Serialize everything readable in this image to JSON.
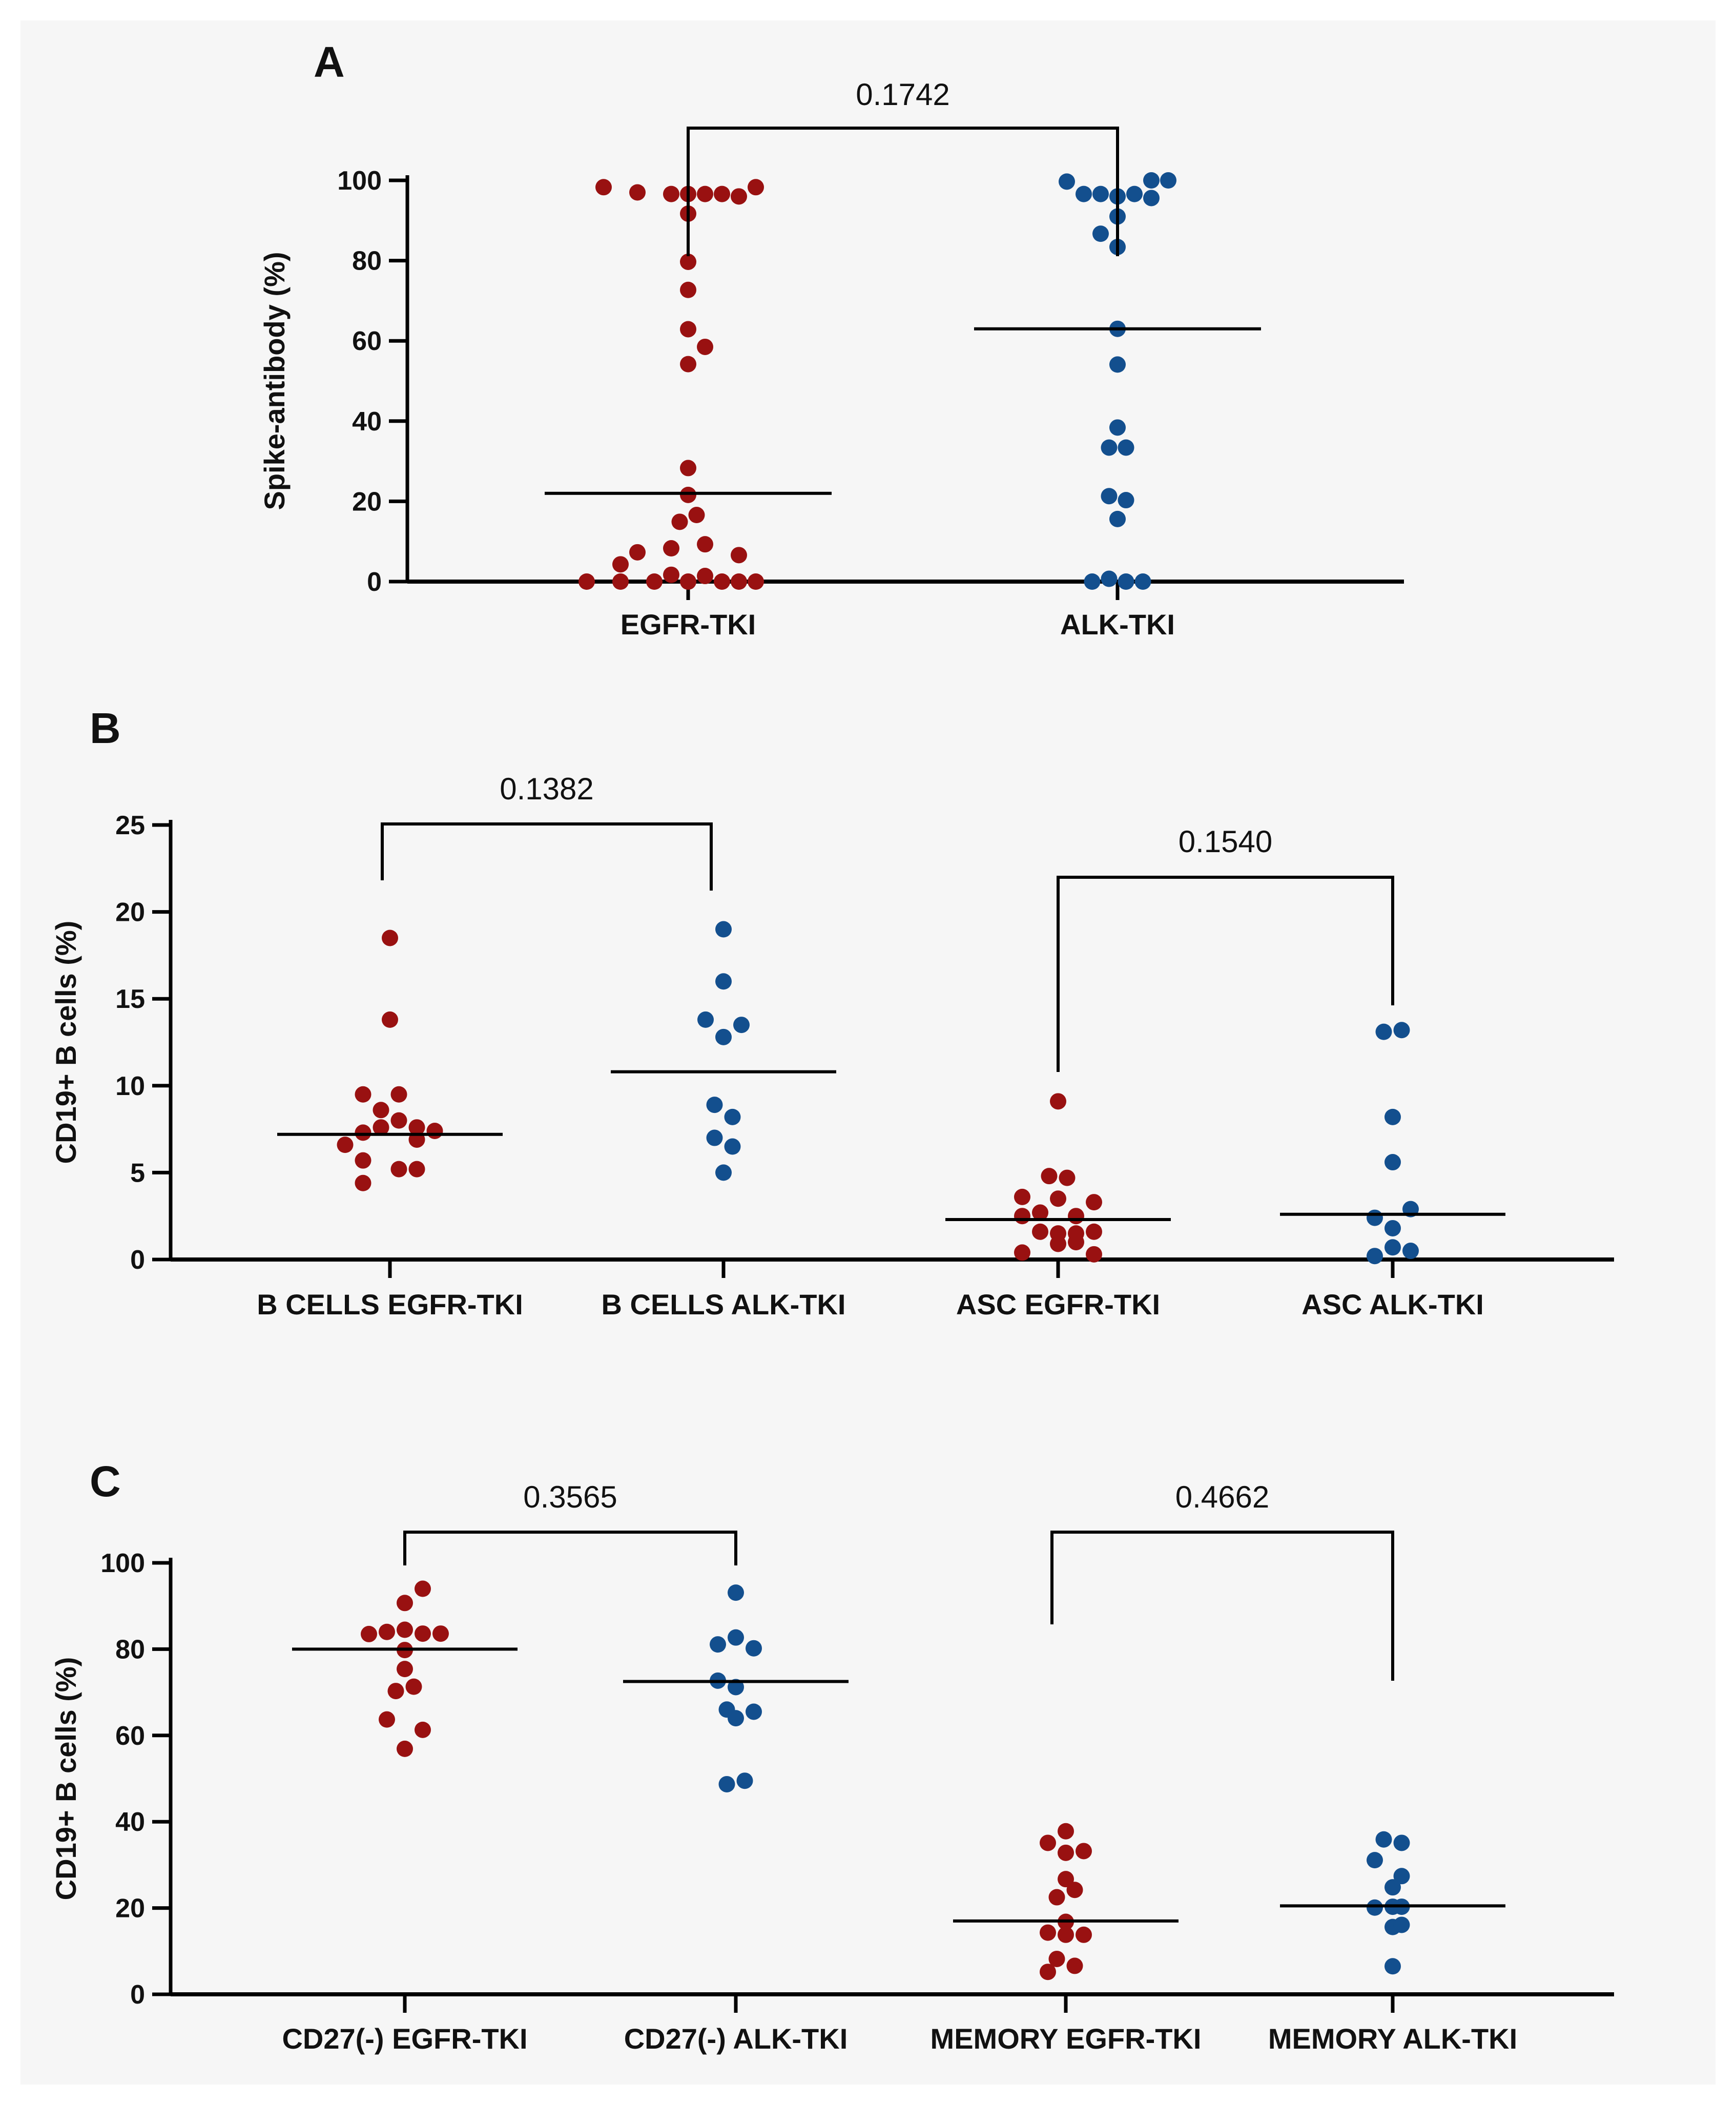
{
  "colors": {
    "egfr": "#991111",
    "alk": "#134f8e",
    "axis": "#000000",
    "background": "#f6f6f6"
  },
  "chart_data": [
    {
      "panel": "A",
      "type": "scatter",
      "ylabel": "Spike-antibody (%)",
      "ylim": [
        0,
        100
      ],
      "yticks": [
        0,
        20,
        40,
        60,
        80,
        100
      ],
      "categories": [
        "EGFR-TKI",
        "ALK-TKI"
      ],
      "series": [
        {
          "name": "EGFR-TKI",
          "color": "egfr",
          "median": 22,
          "points": [
            {
              "dx": -5,
              "y": 98.3
            },
            {
              "dx": -3,
              "y": 97.0
            },
            {
              "dx": -1,
              "y": 96.6
            },
            {
              "dx": 0,
              "y": 96.6
            },
            {
              "dx": 1,
              "y": 96.6
            },
            {
              "dx": 2,
              "y": 96.6
            },
            {
              "dx": 3,
              "y": 96.0
            },
            {
              "dx": 4,
              "y": 98.3
            },
            {
              "dx": 0,
              "y": 91.7
            },
            {
              "dx": 0,
              "y": 79.7
            },
            {
              "dx": 0,
              "y": 72.7
            },
            {
              "dx": 0,
              "y": 62.9
            },
            {
              "dx": 0,
              "y": 54.2
            },
            {
              "dx": 1,
              "y": 58.5
            },
            {
              "dx": 0,
              "y": 28.3
            },
            {
              "dx": 0,
              "y": 21.6
            },
            {
              "dx": 0.5,
              "y": 16.6
            },
            {
              "dx": -0.5,
              "y": 14.9
            },
            {
              "dx": -3,
              "y": 7.3
            },
            {
              "dx": -1,
              "y": 8.3
            },
            {
              "dx": 1,
              "y": 9.3
            },
            {
              "dx": -4,
              "y": 4.3
            },
            {
              "dx": 3,
              "y": 6.6
            },
            {
              "dx": -6,
              "y": 0
            },
            {
              "dx": -4,
              "y": 0
            },
            {
              "dx": -2,
              "y": 0
            },
            {
              "dx": -1,
              "y": 1.7
            },
            {
              "dx": 0,
              "y": 0
            },
            {
              "dx": 1,
              "y": 1.4
            },
            {
              "dx": 2,
              "y": 0
            },
            {
              "dx": 3,
              "y": 0
            },
            {
              "dx": 4,
              "y": 0
            }
          ]
        },
        {
          "name": "ALK-TKI",
          "color": "alk",
          "median": 63,
          "points": [
            {
              "dx": -3,
              "y": 99.7
            },
            {
              "dx": -2,
              "y": 96.6
            },
            {
              "dx": -1,
              "y": 96.6
            },
            {
              "dx": 0,
              "y": 96.0
            },
            {
              "dx": 1,
              "y": 96.6
            },
            {
              "dx": 2,
              "y": 100.0
            },
            {
              "dx": 2,
              "y": 95.6
            },
            {
              "dx": 3,
              "y": 100.0
            },
            {
              "dx": 0,
              "y": 91.0
            },
            {
              "dx": -1,
              "y": 86.7
            },
            {
              "dx": 0,
              "y": 83.4
            },
            {
              "dx": 0,
              "y": 63.0
            },
            {
              "dx": 0,
              "y": 54.1
            },
            {
              "dx": 0,
              "y": 38.4
            },
            {
              "dx": -0.5,
              "y": 33.4
            },
            {
              "dx": 0.5,
              "y": 33.4
            },
            {
              "dx": -0.5,
              "y": 21.3
            },
            {
              "dx": 0.5,
              "y": 20.3
            },
            {
              "dx": 0,
              "y": 15.6
            },
            {
              "dx": -1.5,
              "y": 0
            },
            {
              "dx": -0.5,
              "y": 0.7
            },
            {
              "dx": 0.5,
              "y": 0
            },
            {
              "dx": 1.5,
              "y": 0
            }
          ]
        }
      ],
      "comparisons": [
        {
          "between": [
            0,
            1
          ],
          "p_value": "0.1742"
        }
      ]
    },
    {
      "panel": "B",
      "type": "scatter",
      "ylabel": "CD19+ B cells (%)",
      "ylim": [
        0,
        25
      ],
      "yticks": [
        0,
        5,
        10,
        15,
        20,
        25
      ],
      "categories": [
        "B CELLS EGFR-TKI",
        "B CELLS ALK-TKI",
        "ASC EGFR-TKI",
        "ASC ALK-TKI"
      ],
      "series": [
        {
          "name": "B CELLS EGFR-TKI",
          "color": "egfr",
          "median": 7.2,
          "points": [
            {
              "dx": 0,
              "y": 18.5
            },
            {
              "dx": 0,
              "y": 13.8
            },
            {
              "dx": -1.5,
              "y": 9.5
            },
            {
              "dx": 0.5,
              "y": 9.5
            },
            {
              "dx": -0.5,
              "y": 8.6
            },
            {
              "dx": 0.5,
              "y": 8.0
            },
            {
              "dx": -2.5,
              "y": 6.6
            },
            {
              "dx": -1.5,
              "y": 7.3
            },
            {
              "dx": -0.5,
              "y": 7.6
            },
            {
              "dx": 1.5,
              "y": 7.6
            },
            {
              "dx": 2.5,
              "y": 7.4
            },
            {
              "dx": -1.5,
              "y": 5.7
            },
            {
              "dx": 1.5,
              "y": 6.9
            },
            {
              "dx": -1.5,
              "y": 4.4
            },
            {
              "dx": 0.5,
              "y": 5.2
            },
            {
              "dx": 1.5,
              "y": 5.2
            }
          ]
        },
        {
          "name": "B CELLS ALK-TKI",
          "color": "alk",
          "median": 10.8,
          "points": [
            {
              "dx": 0,
              "y": 19.0
            },
            {
              "dx": 0,
              "y": 16.0
            },
            {
              "dx": -1,
              "y": 13.8
            },
            {
              "dx": 0,
              "y": 12.8
            },
            {
              "dx": 1,
              "y": 13.5
            },
            {
              "dx": -0.5,
              "y": 8.9
            },
            {
              "dx": 0.5,
              "y": 8.2
            },
            {
              "dx": -0.5,
              "y": 7.0
            },
            {
              "dx": 0.5,
              "y": 6.5
            },
            {
              "dx": 0,
              "y": 5.0
            }
          ]
        },
        {
          "name": "ASC EGFR-TKI",
          "color": "egfr",
          "median": 2.3,
          "points": [
            {
              "dx": 0,
              "y": 9.1
            },
            {
              "dx": -0.5,
              "y": 4.8
            },
            {
              "dx": 0.5,
              "y": 4.7
            },
            {
              "dx": -2,
              "y": 3.6
            },
            {
              "dx": 0,
              "y": 3.5
            },
            {
              "dx": 2,
              "y": 3.3
            },
            {
              "dx": -2,
              "y": 2.5
            },
            {
              "dx": -1,
              "y": 2.7
            },
            {
              "dx": 1,
              "y": 2.5
            },
            {
              "dx": -1,
              "y": 1.6
            },
            {
              "dx": 0,
              "y": 1.5
            },
            {
              "dx": 1,
              "y": 1.5
            },
            {
              "dx": 2,
              "y": 1.6
            },
            {
              "dx": -2,
              "y": 0.4
            },
            {
              "dx": 0,
              "y": 0.9
            },
            {
              "dx": 1,
              "y": 1.0
            },
            {
              "dx": 2,
              "y": 0.3
            }
          ]
        },
        {
          "name": "ASC ALK-TKI",
          "color": "alk",
          "median": 2.6,
          "points": [
            {
              "dx": -0.5,
              "y": 13.1
            },
            {
              "dx": 0.5,
              "y": 13.2
            },
            {
              "dx": 0,
              "y": 8.2
            },
            {
              "dx": 0,
              "y": 5.6
            },
            {
              "dx": -1,
              "y": 2.4
            },
            {
              "dx": 1,
              "y": 2.9
            },
            {
              "dx": 0,
              "y": 1.8
            },
            {
              "dx": -1,
              "y": 0.2
            },
            {
              "dx": 0,
              "y": 0.7
            },
            {
              "dx": 1,
              "y": 0.5
            }
          ]
        }
      ],
      "comparisons": [
        {
          "between": [
            0,
            1
          ],
          "p_value": "0.1382"
        },
        {
          "between": [
            2,
            3
          ],
          "p_value": "0.1540"
        }
      ]
    },
    {
      "panel": "C",
      "type": "scatter",
      "ylabel": "CD19+ B cells (%)",
      "ylim": [
        0,
        100
      ],
      "yticks": [
        0,
        20,
        40,
        60,
        80,
        100
      ],
      "categories": [
        "CD27(-) EGFR-TKI",
        "CD27(-) ALK-TKI",
        "MEMORY EGFR-TKI",
        "MEMORY ALK-TKI"
      ],
      "series": [
        {
          "name": "CD27(-) EGFR-TKI",
          "color": "egfr",
          "median": 80,
          "points": [
            {
              "dx": 1,
              "y": 94.0
            },
            {
              "dx": 0,
              "y": 90.7
            },
            {
              "dx": -2,
              "y": 83.5
            },
            {
              "dx": -1,
              "y": 84.0
            },
            {
              "dx": 0,
              "y": 84.5
            },
            {
              "dx": 1,
              "y": 83.6
            },
            {
              "dx": 2,
              "y": 83.6
            },
            {
              "dx": 0,
              "y": 79.8
            },
            {
              "dx": 0,
              "y": 75.4
            },
            {
              "dx": -0.5,
              "y": 70.3
            },
            {
              "dx": 0.5,
              "y": 71.3
            },
            {
              "dx": -1,
              "y": 63.7
            },
            {
              "dx": 1,
              "y": 61.3
            },
            {
              "dx": 0,
              "y": 56.9
            }
          ]
        },
        {
          "name": "CD27(-) ALK-TKI",
          "color": "alk",
          "median": 72.5,
          "points": [
            {
              "dx": 0,
              "y": 93.1
            },
            {
              "dx": -1,
              "y": 81.1
            },
            {
              "dx": 0,
              "y": 82.7
            },
            {
              "dx": 1,
              "y": 80.2
            },
            {
              "dx": -1,
              "y": 72.7
            },
            {
              "dx": 0,
              "y": 71.2
            },
            {
              "dx": -0.5,
              "y": 66.0
            },
            {
              "dx": 1,
              "y": 65.5
            },
            {
              "dx": 0,
              "y": 64.0
            },
            {
              "dx": -0.5,
              "y": 48.7
            },
            {
              "dx": 0.5,
              "y": 49.5
            }
          ]
        },
        {
          "name": "MEMORY EGFR-TKI",
          "color": "egfr",
          "median": 17,
          "points": [
            {
              "dx": -1,
              "y": 35.1
            },
            {
              "dx": 0,
              "y": 37.8
            },
            {
              "dx": 1,
              "y": 33.2
            },
            {
              "dx": 0,
              "y": 32.8
            },
            {
              "dx": 0,
              "y": 26.7
            },
            {
              "dx": -0.5,
              "y": 22.5
            },
            {
              "dx": 0.5,
              "y": 24.2
            },
            {
              "dx": 0,
              "y": 16.8
            },
            {
              "dx": -1,
              "y": 14.3
            },
            {
              "dx": 0,
              "y": 13.8
            },
            {
              "dx": 1,
              "y": 13.8
            },
            {
              "dx": 0.5,
              "y": 6.6
            },
            {
              "dx": -0.5,
              "y": 8.2
            },
            {
              "dx": -1,
              "y": 5.2
            }
          ]
        },
        {
          "name": "MEMORY ALK-TKI",
          "color": "alk",
          "median": 20.5,
          "points": [
            {
              "dx": -0.5,
              "y": 35.9
            },
            {
              "dx": 0.5,
              "y": 35.1
            },
            {
              "dx": -1,
              "y": 31.1
            },
            {
              "dx": 0.5,
              "y": 27.4
            },
            {
              "dx": 0,
              "y": 24.8
            },
            {
              "dx": -1,
              "y": 20.1
            },
            {
              "dx": 0,
              "y": 20.3
            },
            {
              "dx": 0.5,
              "y": 20.3
            },
            {
              "dx": 0,
              "y": 15.6
            },
            {
              "dx": 0.5,
              "y": 16.1
            },
            {
              "dx": 0,
              "y": 6.5
            }
          ]
        }
      ],
      "comparisons": [
        {
          "between": [
            0,
            1
          ],
          "p_value": "0.3565"
        },
        {
          "between": [
            2,
            3
          ],
          "p_value": "0.4662"
        }
      ]
    }
  ]
}
